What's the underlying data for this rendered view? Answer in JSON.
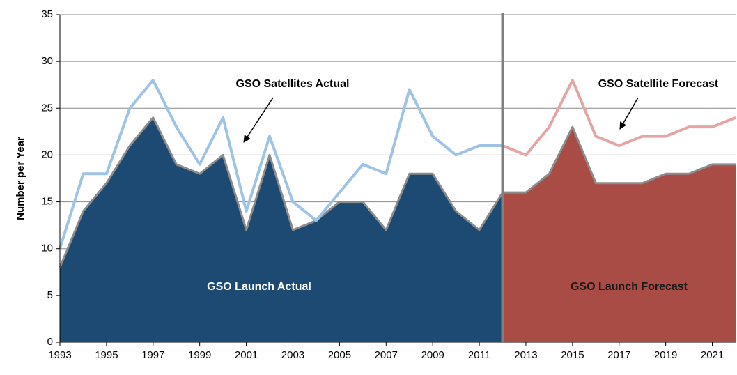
{
  "chart_data": {
    "type": "area",
    "y_label": "Number per Year",
    "annotations": [
      "GSO Satellites Actual",
      "GSO Satellite Forecast",
      "GSO Launch Actual",
      "GSO Launch Forecast"
    ],
    "x": [
      1993,
      1994,
      1995,
      1996,
      1997,
      1998,
      1999,
      2000,
      2001,
      2002,
      2003,
      2004,
      2005,
      2006,
      2007,
      2008,
      2009,
      2010,
      2011,
      2012,
      2013,
      2014,
      2015,
      2016,
      2017,
      2018,
      2019,
      2020,
      2021,
      2022
    ],
    "forecast_start": 2012,
    "series": [
      {
        "name": "GSO Launch Actual",
        "kind": "area",
        "color": "#1d4a72",
        "values": [
          8,
          14,
          17,
          21,
          24,
          19,
          18,
          20,
          12,
          20,
          12,
          13,
          15,
          15,
          12,
          18,
          18,
          14,
          12,
          16,
          null,
          null,
          null,
          null,
          null,
          null,
          null,
          null,
          null,
          null
        ]
      },
      {
        "name": "GSO Launch Forecast",
        "kind": "area",
        "color": "#a84c45",
        "values": [
          null,
          null,
          null,
          null,
          null,
          null,
          null,
          null,
          null,
          null,
          null,
          null,
          null,
          null,
          null,
          null,
          null,
          null,
          null,
          16,
          16,
          18,
          23,
          17,
          17,
          17,
          18,
          18,
          19,
          19
        ]
      },
      {
        "name": "GSO Satellites Actual",
        "kind": "line",
        "color": "#9dc3e6",
        "values": [
          10,
          18,
          18,
          25,
          28,
          23,
          19,
          24,
          14,
          22,
          15,
          13,
          16,
          19,
          18,
          27,
          22,
          20,
          21,
          21,
          null,
          null,
          null,
          null,
          null,
          null,
          null,
          null,
          null,
          null
        ]
      },
      {
        "name": "GSO Satellite Forecast",
        "kind": "line",
        "color": "#e6a5a5",
        "values": [
          null,
          null,
          null,
          null,
          null,
          null,
          null,
          null,
          null,
          null,
          null,
          null,
          null,
          null,
          null,
          null,
          null,
          null,
          null,
          21,
          20,
          23,
          28,
          22,
          21,
          22,
          22,
          23,
          23,
          24
        ]
      }
    ],
    "xlim": [
      1993,
      2022
    ],
    "xticks": [
      1993,
      1995,
      1997,
      1999,
      2001,
      2003,
      2005,
      2007,
      2009,
      2011,
      2013,
      2015,
      2017,
      2019,
      2021
    ],
    "ylim": [
      0,
      35
    ],
    "yticks": [
      0,
      5,
      10,
      15,
      20,
      25,
      30,
      35
    ],
    "grid": true
  }
}
